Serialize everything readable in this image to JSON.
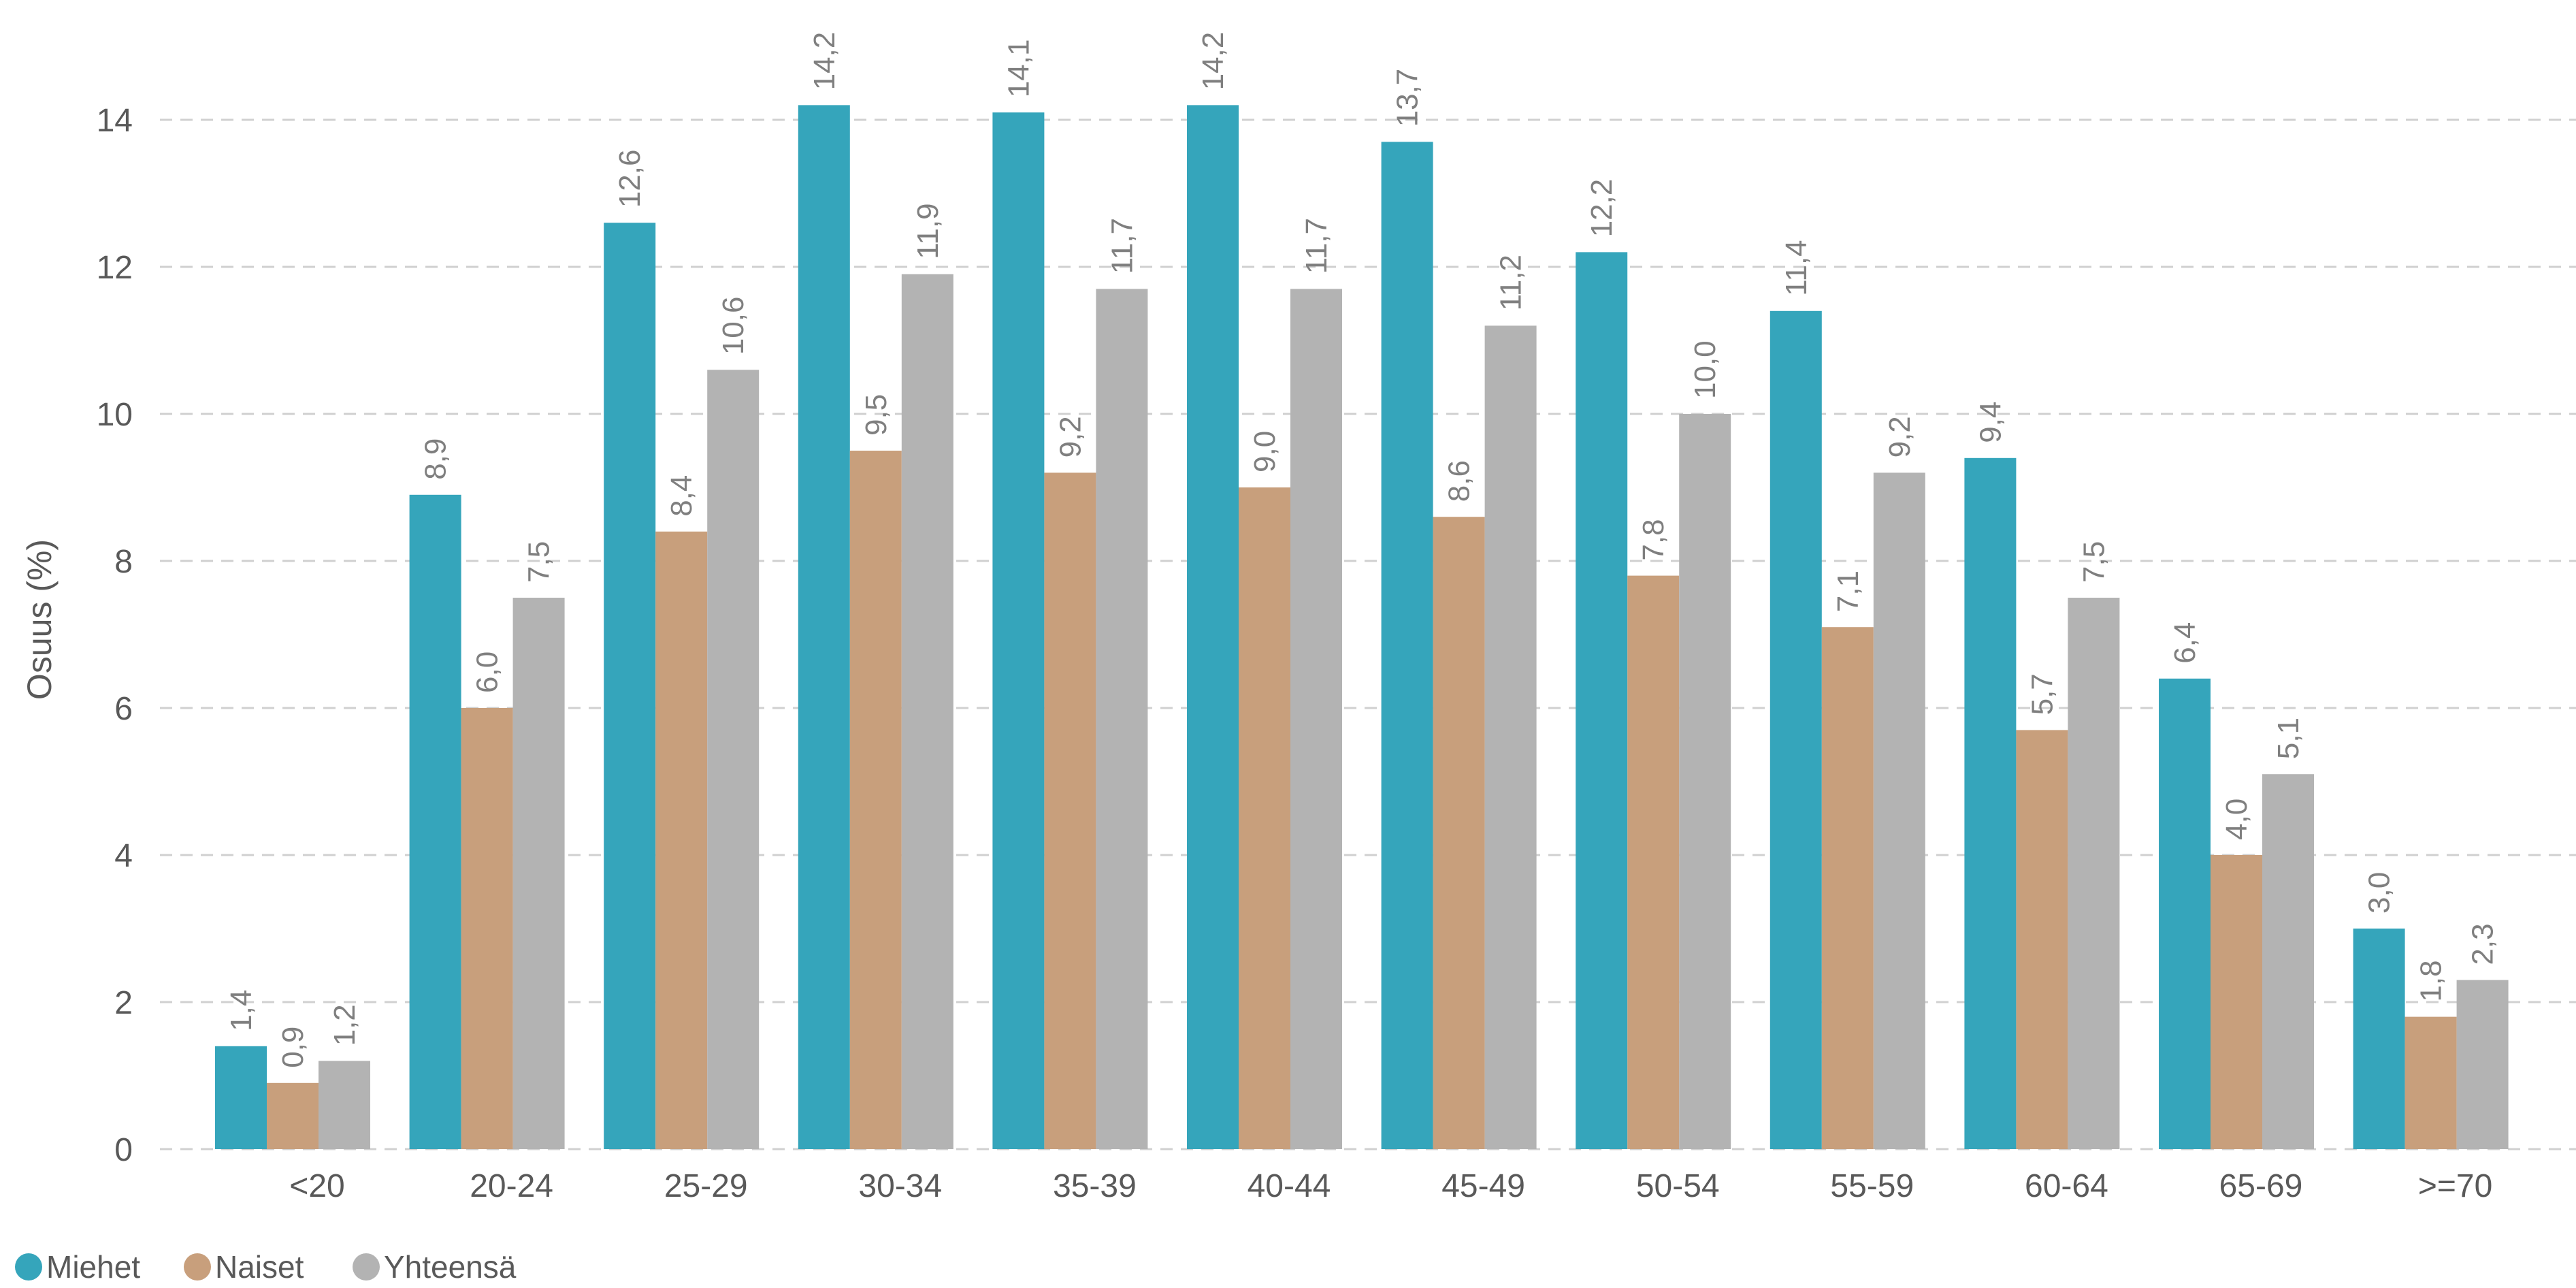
{
  "chart_data": {
    "type": "bar",
    "ylabel": "Osuus (%)",
    "ylim": [
      0,
      14
    ],
    "yticks": [
      0,
      2,
      4,
      6,
      8,
      10,
      12,
      14
    ],
    "ytick_labels": [
      "0",
      "2",
      "4",
      "6",
      "8",
      "10",
      "12",
      "14"
    ],
    "grid": true,
    "legend_position": "bottom-left",
    "categories": [
      "<20",
      "20-24",
      "25-29",
      "30-34",
      "35-39",
      "40-44",
      "45-49",
      "50-54",
      "55-59",
      "60-64",
      "65-69",
      ">=70"
    ],
    "series": [
      {
        "name": "Miehet",
        "color": "#35A5BB",
        "values": [
          1.4,
          8.9,
          12.6,
          14.2,
          14.1,
          14.2,
          13.7,
          12.2,
          11.4,
          9.4,
          6.4,
          3.0
        ],
        "labels": [
          "1,4",
          "8,9",
          "12,6",
          "14,2",
          "14,1",
          "14,2",
          "13,7",
          "12,2",
          "11,4",
          "9,4",
          "6,4",
          "3,0"
        ]
      },
      {
        "name": "Naiset",
        "color": "#C89F7C",
        "values": [
          0.9,
          6.0,
          8.4,
          9.5,
          9.2,
          9.0,
          8.6,
          7.8,
          7.1,
          5.7,
          4.0,
          1.8
        ],
        "labels": [
          "0,9",
          "6,0",
          "8,4",
          "9,5",
          "9,2",
          "9,0",
          "8,6",
          "7,8",
          "7,1",
          "5,7",
          "4,0",
          "1,8"
        ]
      },
      {
        "name": "Yhteensä",
        "color": "#B3B3B3",
        "values": [
          1.2,
          7.5,
          10.6,
          11.9,
          11.7,
          11.7,
          11.2,
          10.0,
          9.2,
          7.5,
          5.1,
          2.3
        ],
        "labels": [
          "1,2",
          "7,5",
          "10,6",
          "11,9",
          "11,7",
          "11,7",
          "11,2",
          "10,0",
          "9,2",
          "7,5",
          "5,1",
          "2,3"
        ]
      }
    ]
  }
}
